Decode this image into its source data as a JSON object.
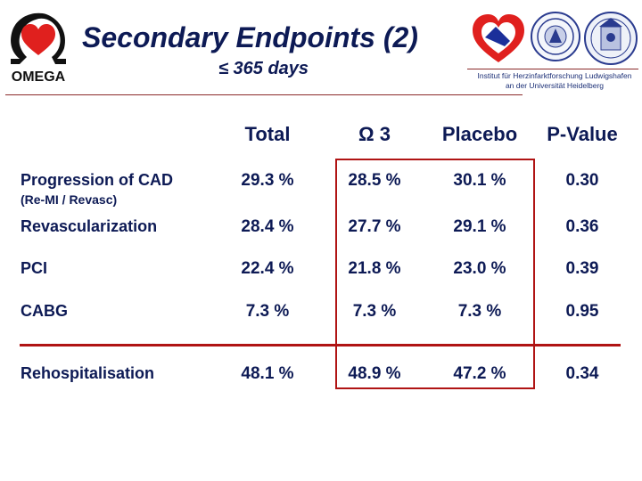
{
  "header": {
    "brand": "OMEGA",
    "title": "Secondary Endpoints (2)",
    "subtitle": "≤ 365 days",
    "institute_line1": "Institut für Herzinfarktforschung Ludwigshafen",
    "institute_line2": "an der Universität Heidelberg"
  },
  "table": {
    "columns": [
      "Total",
      "Ω 3",
      "Placebo",
      "P-Value"
    ],
    "rows": [
      {
        "label": "Progression of CAD",
        "sublabel": "(Re-MI / Revasc)",
        "total": "29.3 %",
        "omega3": "28.5 %",
        "placebo": "30.1 %",
        "p": "0.30"
      },
      {
        "label": "Revascularization",
        "total": "28.4 %",
        "omega3": "27.7 %",
        "placebo": "29.1 %",
        "p": "0.36"
      },
      {
        "label": "PCI",
        "total": "22.4 %",
        "omega3": "21.8 %",
        "placebo": "23.0 %",
        "p": "0.39"
      },
      {
        "label": "CABG",
        "total": "7.3 %",
        "omega3": "7.3 %",
        "placebo": "7.3 %",
        "p": "0.95"
      },
      {
        "label": "Rehospitalisation",
        "total": "48.1 %",
        "omega3": "48.9 %",
        "placebo": "47.2 %",
        "p": "0.34"
      }
    ]
  },
  "colors": {
    "text": "#0d1a55",
    "accent_red": "#b01414",
    "heart_red": "#e0201e"
  }
}
